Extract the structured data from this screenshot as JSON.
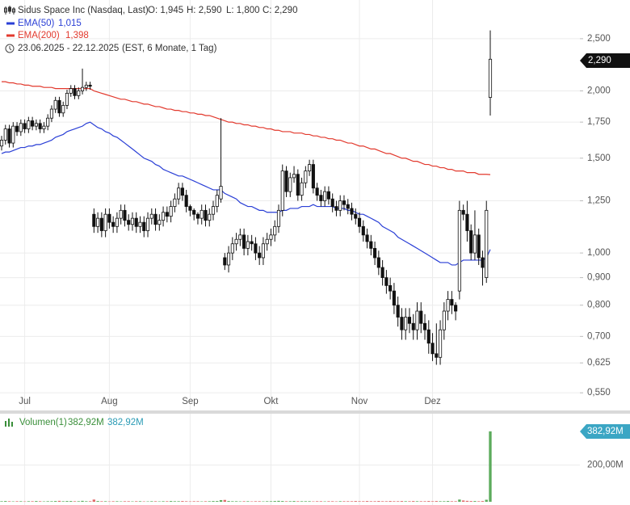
{
  "chart_data": [
    {
      "type": "candlestick",
      "title": "Sidus Space Inc (Nasdaq, Last)",
      "ohlc_labels": [
        "O: 1,945",
        "H: 2,590",
        "L: 1,800",
        "C: 2,290"
      ],
      "date_range": "23.06.2025 - 22.12.2025",
      "subtitle": "(EST, 6 Monate, 1 Tag)",
      "tag": "2,290",
      "categories": [
        null,
        null,
        null,
        null,
        null,
        null,
        "Jul",
        null,
        null,
        null,
        null,
        null,
        null,
        null,
        null,
        null,
        null,
        null,
        null,
        null,
        null,
        null,
        null,
        null,
        null,
        null,
        null,
        null,
        "Aug",
        null,
        null,
        null,
        null,
        null,
        null,
        null,
        null,
        null,
        null,
        null,
        null,
        null,
        null,
        null,
        null,
        null,
        null,
        null,
        null,
        "Sep",
        null,
        null,
        null,
        null,
        null,
        null,
        null,
        null,
        null,
        null,
        null,
        null,
        null,
        null,
        null,
        null,
        null,
        null,
        null,
        null,
        "Okt",
        null,
        null,
        null,
        null,
        null,
        null,
        null,
        null,
        null,
        null,
        null,
        null,
        null,
        null,
        null,
        null,
        null,
        null,
        null,
        null,
        null,
        null,
        "Nov",
        null,
        null,
        null,
        null,
        null,
        null,
        null,
        null,
        null,
        null,
        null,
        null,
        null,
        null,
        null,
        null,
        null,
        null,
        "Dez",
        null,
        null,
        null,
        null,
        null,
        null,
        null,
        null,
        null,
        null,
        null,
        null,
        null,
        null,
        null
      ],
      "open": [
        1.58,
        1.62,
        1.7,
        1.6,
        1.72,
        1.68,
        1.74,
        1.7,
        1.76,
        1.72,
        1.74,
        1.7,
        1.72,
        1.78,
        1.85,
        1.92,
        1.82,
        1.88,
        1.98,
        2.02,
        1.96,
        2.0,
        2.03,
        2.05,
        1.18,
        1.12,
        1.16,
        1.1,
        1.18,
        1.14,
        1.12,
        1.16,
        1.2,
        1.15,
        1.13,
        1.16,
        1.12,
        1.14,
        1.1,
        1.16,
        1.18,
        1.13,
        1.15,
        1.19,
        1.17,
        1.22,
        1.26,
        1.32,
        1.28,
        1.22,
        1.2,
        1.18,
        1.16,
        1.2,
        1.15,
        1.18,
        1.22,
        1.26,
        0.98,
        0.95,
        1.0,
        1.04,
        1.06,
        1.08,
        1.02,
        1.05,
        1.04,
        1.0,
        0.98,
        1.04,
        1.06,
        1.08,
        1.12,
        1.2,
        1.42,
        1.3,
        1.38,
        1.4,
        1.28,
        1.35,
        1.42,
        1.46,
        1.32,
        1.28,
        1.25,
        1.3,
        1.26,
        1.22,
        1.2,
        1.25,
        1.23,
        1.21,
        1.18,
        1.16,
        1.12,
        1.08,
        1.05,
        1.02,
        0.98,
        0.94,
        0.9,
        0.87,
        0.85,
        0.8,
        0.76,
        0.72,
        0.76,
        0.74,
        0.72,
        0.78,
        0.74,
        0.72,
        0.68,
        0.65,
        0.64,
        0.72,
        0.78,
        0.82,
        0.8,
        0.85,
        1.2,
        1.18,
        1.1,
        1.0,
        1.08,
        0.98,
        0.9,
        1.945
      ],
      "high": [
        1.65,
        1.73,
        1.73,
        1.75,
        1.75,
        1.77,
        1.77,
        1.79,
        1.79,
        1.77,
        1.77,
        1.75,
        1.81,
        1.88,
        1.95,
        1.95,
        1.91,
        2.01,
        2.05,
        2.05,
        2.03,
        2.2,
        2.08,
        2.08,
        1.21,
        1.19,
        1.19,
        1.21,
        1.21,
        1.17,
        1.19,
        1.23,
        1.23,
        1.18,
        1.19,
        1.19,
        1.17,
        1.17,
        1.19,
        1.21,
        1.21,
        1.18,
        1.22,
        1.22,
        1.25,
        1.29,
        1.35,
        1.35,
        1.31,
        1.23,
        1.21,
        1.19,
        1.23,
        1.23,
        1.21,
        1.25,
        1.31,
        1.78,
        1.0,
        1.03,
        1.07,
        1.09,
        1.11,
        1.11,
        1.08,
        1.08,
        1.07,
        1.03,
        1.07,
        1.09,
        1.11,
        1.15,
        1.23,
        1.46,
        1.45,
        1.41,
        1.45,
        1.43,
        1.38,
        1.45,
        1.49,
        1.49,
        1.35,
        1.31,
        1.33,
        1.33,
        1.29,
        1.25,
        1.28,
        1.28,
        1.26,
        1.24,
        1.21,
        1.19,
        1.15,
        1.11,
        1.08,
        1.05,
        1.01,
        0.97,
        0.93,
        0.9,
        0.88,
        0.83,
        0.79,
        0.79,
        0.79,
        0.77,
        0.81,
        0.81,
        0.77,
        0.75,
        0.71,
        0.74,
        0.75,
        0.81,
        0.85,
        0.85,
        0.81,
        1.25,
        1.23,
        1.25,
        1.13,
        1.2,
        1.11,
        1.01,
        1.25,
        2.59
      ],
      "low": [
        1.55,
        1.59,
        1.57,
        1.57,
        1.65,
        1.65,
        1.67,
        1.67,
        1.69,
        1.69,
        1.67,
        1.67,
        1.69,
        1.75,
        1.82,
        1.79,
        1.79,
        1.85,
        1.95,
        1.93,
        1.93,
        1.97,
        2.0,
        2.01,
        1.09,
        1.09,
        1.07,
        1.07,
        1.11,
        1.09,
        1.09,
        1.13,
        1.12,
        1.1,
        1.1,
        1.09,
        1.09,
        1.07,
        1.07,
        1.13,
        1.1,
        1.1,
        1.12,
        1.14,
        1.14,
        1.19,
        1.23,
        1.25,
        1.19,
        1.17,
        1.15,
        1.13,
        1.13,
        1.12,
        1.12,
        1.15,
        1.19,
        1.24,
        0.93,
        0.92,
        0.97,
        1.01,
        1.03,
        0.99,
        0.99,
        1.01,
        0.97,
        0.95,
        0.95,
        1.01,
        1.03,
        1.05,
        1.09,
        1.17,
        1.27,
        1.27,
        1.35,
        1.25,
        1.25,
        1.32,
        1.39,
        1.29,
        1.25,
        1.22,
        1.22,
        1.23,
        1.19,
        1.17,
        1.17,
        1.2,
        1.18,
        1.15,
        1.13,
        1.09,
        1.05,
        1.02,
        0.99,
        0.95,
        0.91,
        0.87,
        0.84,
        0.82,
        0.77,
        0.73,
        0.69,
        0.69,
        0.71,
        0.69,
        0.69,
        0.71,
        0.69,
        0.65,
        0.63,
        0.62,
        0.62,
        0.69,
        0.75,
        0.77,
        0.75,
        0.82,
        1.15,
        1.05,
        0.97,
        0.97,
        0.95,
        0.87,
        0.88,
        1.8
      ],
      "close": [
        1.62,
        1.7,
        1.6,
        1.72,
        1.68,
        1.74,
        1.7,
        1.76,
        1.72,
        1.74,
        1.7,
        1.72,
        1.78,
        1.85,
        1.92,
        1.82,
        1.88,
        1.98,
        2.02,
        1.96,
        2.0,
        2.03,
        2.05,
        2.04,
        1.12,
        1.16,
        1.1,
        1.18,
        1.14,
        1.12,
        1.16,
        1.2,
        1.15,
        1.13,
        1.16,
        1.12,
        1.14,
        1.1,
        1.16,
        1.18,
        1.13,
        1.15,
        1.19,
        1.17,
        1.22,
        1.26,
        1.32,
        1.28,
        1.22,
        1.2,
        1.18,
        1.16,
        1.2,
        1.15,
        1.18,
        1.22,
        1.28,
        1.33,
        0.95,
        1.0,
        1.04,
        1.06,
        1.08,
        1.02,
        1.05,
        1.04,
        1.0,
        0.98,
        1.04,
        1.06,
        1.08,
        1.12,
        1.2,
        1.42,
        1.3,
        1.38,
        1.4,
        1.28,
        1.35,
        1.42,
        1.46,
        1.32,
        1.28,
        1.25,
        1.3,
        1.26,
        1.22,
        1.2,
        1.25,
        1.23,
        1.21,
        1.18,
        1.16,
        1.12,
        1.08,
        1.05,
        1.02,
        0.98,
        0.94,
        0.9,
        0.87,
        0.85,
        0.8,
        0.76,
        0.72,
        0.76,
        0.74,
        0.72,
        0.78,
        0.74,
        0.72,
        0.68,
        0.65,
        0.64,
        0.72,
        0.78,
        0.82,
        0.8,
        0.78,
        1.2,
        1.18,
        1.1,
        1.0,
        1.08,
        0.98,
        0.94,
        1.2,
        2.29
      ],
      "up_color": "#ffffff",
      "down_color": "#111111",
      "series": [
        {
          "name": "EMA(50)",
          "color": "#2a3fd6",
          "last_label": "1,015",
          "values": [
            1.53,
            1.54,
            1.54,
            1.55,
            1.56,
            1.57,
            1.57,
            1.58,
            1.58,
            1.59,
            1.59,
            1.6,
            1.61,
            1.62,
            1.64,
            1.65,
            1.66,
            1.68,
            1.69,
            1.7,
            1.71,
            1.72,
            1.74,
            1.75,
            1.73,
            1.71,
            1.7,
            1.68,
            1.67,
            1.65,
            1.64,
            1.62,
            1.6,
            1.58,
            1.56,
            1.54,
            1.52,
            1.5,
            1.49,
            1.48,
            1.46,
            1.45,
            1.43,
            1.42,
            1.41,
            1.4,
            1.39,
            1.39,
            1.38,
            1.37,
            1.36,
            1.35,
            1.34,
            1.33,
            1.32,
            1.31,
            1.31,
            1.31,
            1.29,
            1.28,
            1.27,
            1.26,
            1.24,
            1.23,
            1.22,
            1.22,
            1.21,
            1.2,
            1.2,
            1.19,
            1.19,
            1.19,
            1.19,
            1.2,
            1.2,
            1.21,
            1.21,
            1.21,
            1.22,
            1.22,
            1.22,
            1.23,
            1.22,
            1.22,
            1.22,
            1.22,
            1.22,
            1.21,
            1.21,
            1.21,
            1.2,
            1.2,
            1.19,
            1.18,
            1.18,
            1.17,
            1.16,
            1.15,
            1.14,
            1.12,
            1.11,
            1.1,
            1.09,
            1.07,
            1.06,
            1.05,
            1.04,
            1.03,
            1.02,
            1.01,
            1.0,
            0.99,
            0.98,
            0.97,
            0.96,
            0.96,
            0.96,
            0.95,
            0.95,
            0.96,
            0.97,
            0.97,
            0.97,
            0.97,
            0.97,
            0.97,
            0.98,
            1.015
          ]
        },
        {
          "name": "EMA(200)",
          "color": "#e2392d",
          "last_label": "1,398",
          "values": [
            2.08,
            2.08,
            2.07,
            2.07,
            2.06,
            2.06,
            2.05,
            2.05,
            2.04,
            2.04,
            2.04,
            2.03,
            2.03,
            2.03,
            2.02,
            2.02,
            2.02,
            2.02,
            2.02,
            2.02,
            2.02,
            2.02,
            2.02,
            2.02,
            2.0,
            1.99,
            1.98,
            1.97,
            1.96,
            1.95,
            1.94,
            1.93,
            1.93,
            1.92,
            1.91,
            1.91,
            1.9,
            1.89,
            1.89,
            1.88,
            1.87,
            1.87,
            1.86,
            1.85,
            1.85,
            1.84,
            1.84,
            1.83,
            1.83,
            1.82,
            1.82,
            1.81,
            1.81,
            1.8,
            1.8,
            1.79,
            1.78,
            1.77,
            1.76,
            1.75,
            1.75,
            1.74,
            1.74,
            1.73,
            1.73,
            1.72,
            1.72,
            1.71,
            1.71,
            1.7,
            1.7,
            1.69,
            1.69,
            1.68,
            1.68,
            1.68,
            1.67,
            1.67,
            1.67,
            1.66,
            1.66,
            1.65,
            1.65,
            1.64,
            1.64,
            1.63,
            1.63,
            1.62,
            1.62,
            1.61,
            1.6,
            1.6,
            1.59,
            1.58,
            1.58,
            1.57,
            1.56,
            1.56,
            1.55,
            1.54,
            1.53,
            1.53,
            1.52,
            1.51,
            1.5,
            1.5,
            1.49,
            1.48,
            1.48,
            1.47,
            1.46,
            1.46,
            1.45,
            1.45,
            1.44,
            1.44,
            1.43,
            1.43,
            1.42,
            1.42,
            1.42,
            1.41,
            1.41,
            1.41,
            1.4,
            1.4,
            1.4,
            1.398
          ]
        }
      ],
      "log": true,
      "grid": true,
      "ylim": [
        0.51,
        2.95
      ],
      "yticks": [
        {
          "value": 0.55,
          "label": "0,550"
        },
        {
          "value": 0.625,
          "label": "0,625"
        },
        {
          "value": 0.7,
          "label": "0,700"
        },
        {
          "value": 0.8,
          "label": "0,800"
        },
        {
          "value": 0.9,
          "label": "0,900"
        },
        {
          "value": 1,
          "label": "1,000"
        },
        {
          "value": 1.25,
          "label": "1,250"
        },
        {
          "value": 1.5,
          "label": "1,500"
        },
        {
          "value": 1.75,
          "label": "1,750"
        },
        {
          "value": 2,
          "label": "2,000"
        },
        {
          "value": 2.5,
          "label": "2,500"
        }
      ]
    },
    {
      "type": "bar",
      "title": "Volumen(1)",
      "header_values": [
        "382,92M",
        "382,92M"
      ],
      "tag": "382,92M",
      "up_color": "#5cab5c",
      "down_color": "#e06a6a",
      "values": [
        3,
        4,
        3,
        2,
        3,
        3,
        2,
        3,
        3,
        4,
        3,
        2,
        3,
        3,
        4,
        5,
        3,
        4,
        4,
        3,
        3,
        5,
        3,
        3,
        12,
        4,
        3,
        3,
        2,
        3,
        3,
        2,
        3,
        3,
        2,
        3,
        3,
        2,
        2,
        3,
        3,
        2,
        3,
        3,
        4,
        3,
        3,
        4,
        3,
        2,
        3,
        3,
        2,
        3,
        3,
        4,
        4,
        9,
        10,
        4,
        3,
        3,
        2,
        3,
        3,
        2,
        3,
        3,
        2,
        3,
        3,
        4,
        5,
        4,
        3,
        3,
        4,
        3,
        3,
        3,
        3,
        2,
        3,
        3,
        2,
        3,
        3,
        2,
        3,
        3,
        3,
        3,
        4,
        3,
        3,
        4,
        3,
        3,
        4,
        3,
        3,
        4,
        3,
        3,
        4,
        3,
        3,
        4,
        3,
        3,
        3,
        4,
        3,
        4,
        3,
        3,
        4,
        3,
        3,
        12,
        7,
        5,
        4,
        4,
        3,
        4,
        11,
        382.92
      ],
      "ylim": [
        0,
        470
      ],
      "yticks": [
        {
          "value": 200,
          "label": "200,00M"
        }
      ]
    }
  ]
}
